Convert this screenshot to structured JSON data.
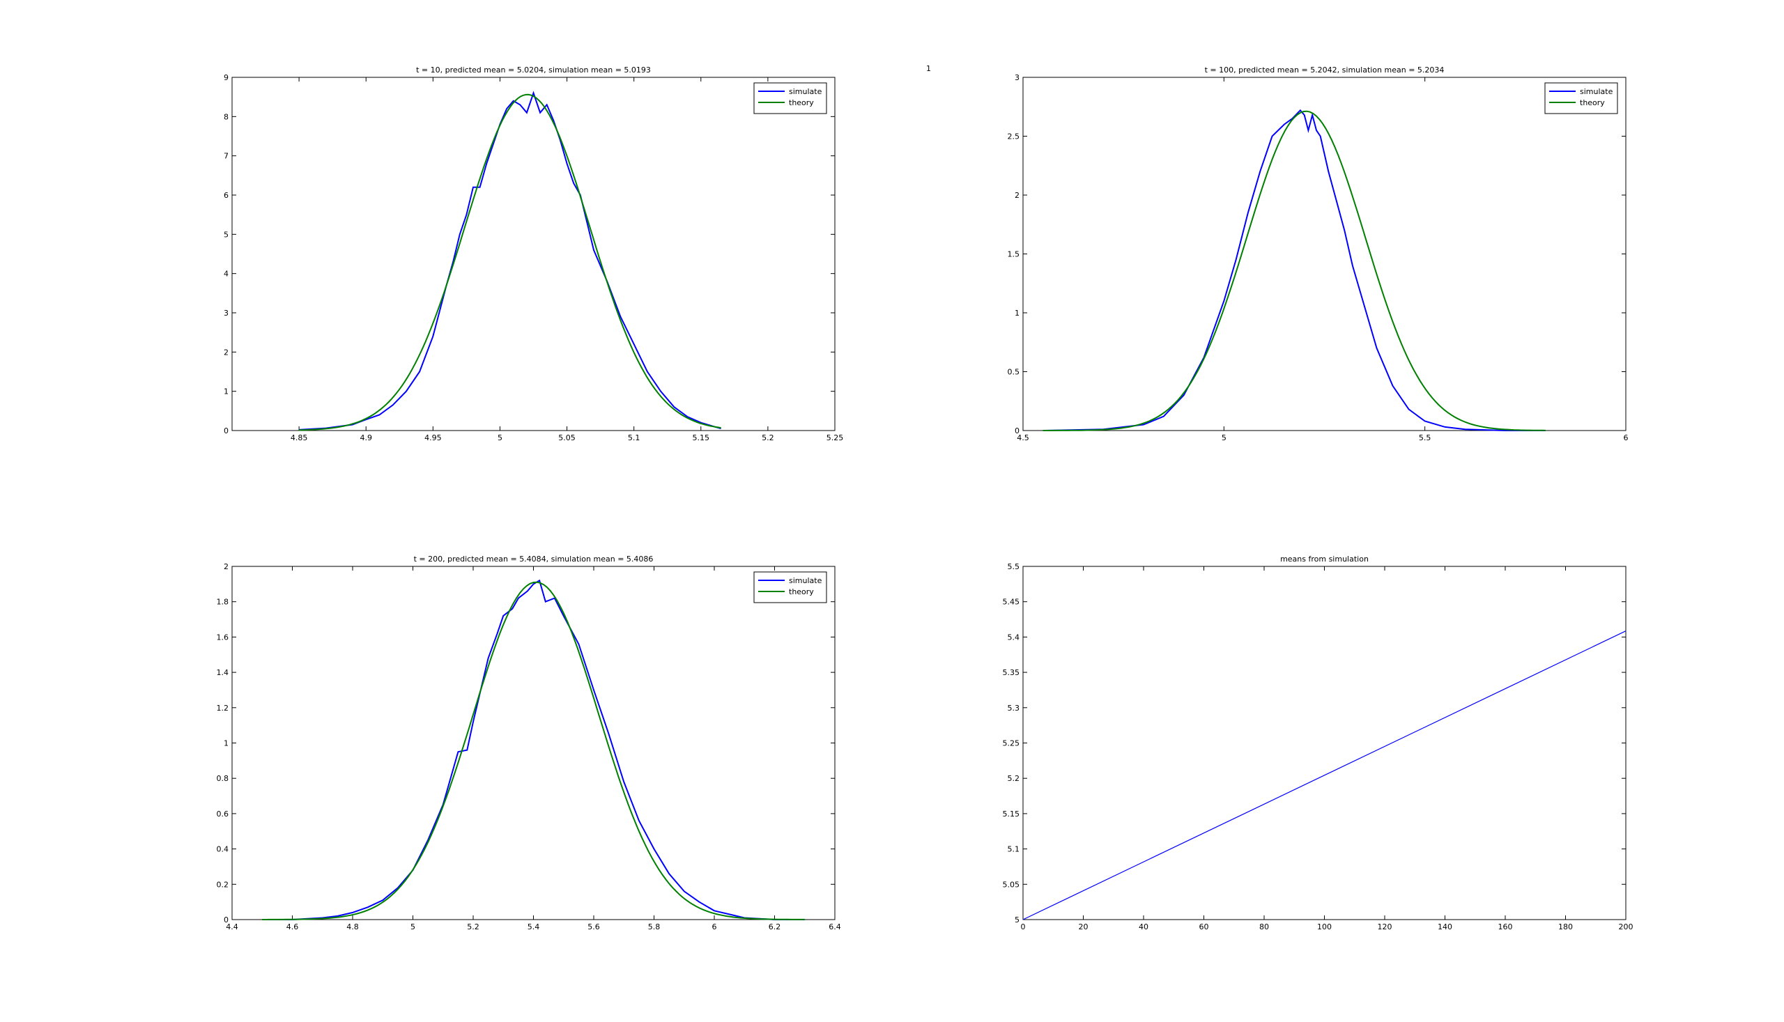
{
  "figure": {
    "stray_label": "1"
  },
  "chart_data": [
    {
      "type": "line",
      "title": "t = 10,  predicted mean = 5.0204,  simulation mean = 5.0193",
      "xlabel": "",
      "ylabel": "",
      "xlim": [
        4.8,
        5.25
      ],
      "ylim": [
        0,
        9
      ],
      "xticks": [
        4.85,
        4.9,
        4.95,
        5,
        5.05,
        5.1,
        5.15,
        5.2,
        5.25
      ],
      "xtick_labels": [
        "4.85",
        "4.9",
        "4.95",
        "5",
        "5.05",
        "5.1",
        "5.15",
        "5.2",
        "5.25"
      ],
      "yticks": [
        0,
        1,
        2,
        3,
        4,
        5,
        6,
        7,
        8,
        9
      ],
      "ytick_labels": [
        "0",
        "1",
        "2",
        "3",
        "4",
        "5",
        "6",
        "7",
        "8",
        "9"
      ],
      "legend": "top-right",
      "grid": false,
      "series": [
        {
          "name": "simulate",
          "color": "#0000ff",
          "x": [
            4.85,
            4.87,
            4.89,
            4.9,
            4.91,
            4.92,
            4.93,
            4.94,
            4.95,
            4.96,
            4.965,
            4.97,
            4.975,
            4.98,
            4.985,
            4.99,
            4.995,
            5.0,
            5.005,
            5.01,
            5.015,
            5.02,
            5.025,
            5.03,
            5.035,
            5.04,
            5.045,
            5.05,
            5.055,
            5.06,
            5.065,
            5.07,
            5.08,
            5.09,
            5.1,
            5.11,
            5.12,
            5.13,
            5.14,
            5.15,
            5.16,
            5.165
          ],
          "y": [
            0.02,
            0.06,
            0.15,
            0.28,
            0.4,
            0.65,
            1.0,
            1.5,
            2.4,
            3.7,
            4.3,
            5.0,
            5.5,
            6.2,
            6.2,
            6.8,
            7.3,
            7.8,
            8.2,
            8.4,
            8.3,
            8.1,
            8.6,
            8.1,
            8.3,
            7.9,
            7.4,
            6.8,
            6.3,
            6.0,
            5.3,
            4.6,
            3.8,
            2.9,
            2.2,
            1.5,
            1.0,
            0.6,
            0.35,
            0.2,
            0.1,
            0.05
          ]
        },
        {
          "name": "theory",
          "color": "#008000",
          "mean": 5.0204,
          "sd": 0.0466,
          "x_range": [
            4.85,
            5.165
          ]
        }
      ]
    },
    {
      "type": "line",
      "title": "t = 100,  predicted mean = 5.2042,  simulation mean = 5.2034",
      "xlabel": "",
      "ylabel": "",
      "xlim": [
        4.5,
        6
      ],
      "ylim": [
        0,
        3
      ],
      "xticks": [
        4.5,
        5,
        5.5,
        6
      ],
      "xtick_labels": [
        "4.5",
        "5",
        "5.5",
        "6"
      ],
      "yticks": [
        0,
        0.5,
        1,
        1.5,
        2,
        2.5,
        3
      ],
      "ytick_labels": [
        "0",
        "0.5",
        "1",
        "1.5",
        "2",
        "2.5",
        "3"
      ],
      "legend": "top-right",
      "grid": false,
      "series": [
        {
          "name": "simulate",
          "color": "#0000ff",
          "x": [
            4.55,
            4.7,
            4.8,
            4.85,
            4.9,
            4.95,
            5.0,
            5.03,
            5.06,
            5.09,
            5.12,
            5.15,
            5.17,
            5.19,
            5.2,
            5.21,
            5.22,
            5.23,
            5.24,
            5.26,
            5.28,
            5.3,
            5.32,
            5.35,
            5.38,
            5.42,
            5.46,
            5.5,
            5.55,
            5.6,
            5.7,
            5.8
          ],
          "y": [
            0.0,
            0.01,
            0.05,
            0.12,
            0.3,
            0.62,
            1.1,
            1.45,
            1.85,
            2.2,
            2.5,
            2.6,
            2.65,
            2.72,
            2.68,
            2.55,
            2.68,
            2.55,
            2.5,
            2.2,
            1.95,
            1.7,
            1.4,
            1.05,
            0.7,
            0.38,
            0.18,
            0.08,
            0.03,
            0.01,
            0.0,
            0.0
          ]
        },
        {
          "name": "theory",
          "color": "#008000",
          "mean": 5.2042,
          "sd": 0.1471,
          "x_range": [
            4.55,
            5.8
          ]
        }
      ]
    },
    {
      "type": "line",
      "title": "t = 200,  predicted mean = 5.4084,  simulation mean = 5.4086",
      "xlabel": "",
      "ylabel": "",
      "xlim": [
        4.4,
        6.4
      ],
      "ylim": [
        0,
        2
      ],
      "xticks": [
        4.4,
        4.6,
        4.8,
        5,
        5.2,
        5.4,
        5.6,
        5.8,
        6,
        6.2,
        6.4
      ],
      "xtick_labels": [
        "4.4",
        "4.6",
        "4.8",
        "5",
        "5.2",
        "5.4",
        "5.6",
        "5.8",
        "6",
        "6.2",
        "6.4"
      ],
      "yticks": [
        0,
        0.2,
        0.4,
        0.6,
        0.8,
        1,
        1.2,
        1.4,
        1.6,
        1.8,
        2
      ],
      "ytick_labels": [
        "0",
        "0.2",
        "0.4",
        "0.6",
        "0.8",
        "1",
        "1.2",
        "1.4",
        "1.6",
        "1.8",
        "2"
      ],
      "legend": "top-right",
      "grid": false,
      "series": [
        {
          "name": "simulate",
          "color": "#0000ff",
          "x": [
            4.5,
            4.6,
            4.7,
            4.75,
            4.8,
            4.85,
            4.9,
            4.95,
            5.0,
            5.05,
            5.1,
            5.15,
            5.18,
            5.2,
            5.25,
            5.28,
            5.3,
            5.33,
            5.35,
            5.38,
            5.4,
            5.42,
            5.44,
            5.47,
            5.5,
            5.55,
            5.6,
            5.65,
            5.7,
            5.75,
            5.8,
            5.85,
            5.9,
            5.95,
            6.0,
            6.05,
            6.1,
            6.2,
            6.3
          ],
          "y": [
            0.0,
            0.0,
            0.01,
            0.02,
            0.04,
            0.07,
            0.11,
            0.18,
            0.28,
            0.45,
            0.65,
            0.95,
            0.96,
            1.12,
            1.48,
            1.62,
            1.72,
            1.76,
            1.82,
            1.86,
            1.9,
            1.92,
            1.8,
            1.82,
            1.72,
            1.56,
            1.3,
            1.05,
            0.78,
            0.56,
            0.4,
            0.26,
            0.16,
            0.1,
            0.05,
            0.03,
            0.01,
            0.0,
            0.0
          ]
        },
        {
          "name": "theory",
          "color": "#008000",
          "mean": 5.4084,
          "sd": 0.2088,
          "x_range": [
            4.5,
            6.3
          ]
        }
      ]
    },
    {
      "type": "line",
      "title": "means from simulation",
      "xlabel": "",
      "ylabel": "",
      "xlim": [
        0,
        200
      ],
      "ylim": [
        5,
        5.5
      ],
      "xticks": [
        0,
        20,
        40,
        60,
        80,
        100,
        120,
        140,
        160,
        180,
        200
      ],
      "xtick_labels": [
        "0",
        "20",
        "40",
        "60",
        "80",
        "100",
        "120",
        "140",
        "160",
        "180",
        "200"
      ],
      "yticks": [
        5,
        5.05,
        5.1,
        5.15,
        5.2,
        5.25,
        5.3,
        5.35,
        5.4,
        5.45,
        5.5
      ],
      "ytick_labels": [
        "5",
        "5.05",
        "5.1",
        "5.15",
        "5.2",
        "5.25",
        "5.3",
        "5.35",
        "5.4",
        "5.45",
        "5.5"
      ],
      "legend": "none",
      "grid": false,
      "series": [
        {
          "color": "#0000ff",
          "x": [
            0,
            200
          ],
          "y": [
            5.0,
            5.4086
          ]
        }
      ]
    }
  ]
}
